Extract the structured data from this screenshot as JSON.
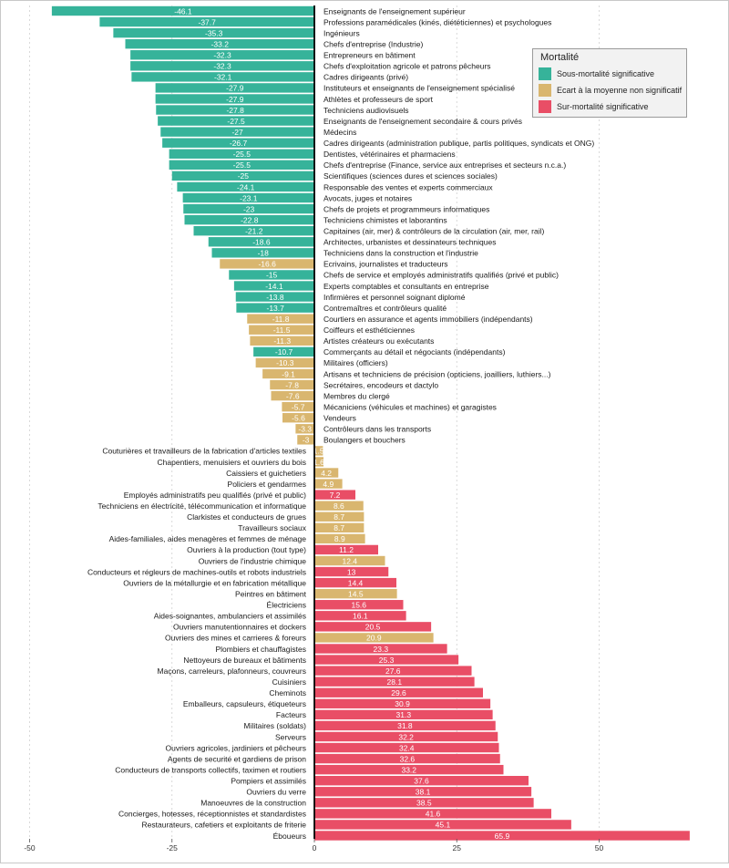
{
  "chart_data": {
    "type": "bar",
    "orientation": "horizontal",
    "xlim": [
      -52,
      68
    ],
    "x_ticks": [
      -50,
      -25,
      0,
      25,
      50
    ],
    "x_tick_labels": [
      "-50",
      "-25",
      "0",
      "25",
      "50"
    ],
    "grid": true,
    "legend": {
      "title": "Mortalité",
      "placement": "top-right",
      "entries": [
        {
          "key": "sous",
          "label": "Sous-mortalité significative",
          "color": "#36b39a"
        },
        {
          "key": "ecart",
          "label": "Ecart à la moyenne non significatif",
          "color": "#d9b66f"
        },
        {
          "key": "sur",
          "label": "Sur-mortalité significative",
          "color": "#e94e66"
        }
      ]
    },
    "bars": [
      {
        "label": "Enseignants de l'enseignement supérieur",
        "value": -46.1,
        "group": "sous"
      },
      {
        "label": "Professions paramédicales (kinés, diététiciennes) et psychologues",
        "value": -37.7,
        "group": "sous"
      },
      {
        "label": "Ingénieurs",
        "value": -35.3,
        "group": "sous"
      },
      {
        "label": "Chefs d'entreprise (Industrie)",
        "value": -33.2,
        "group": "sous"
      },
      {
        "label": "Entrepreneurs en bâtiment",
        "value": -32.3,
        "group": "sous"
      },
      {
        "label": "Chefs d'exploitation agricole et patrons pêcheurs",
        "value": -32.3,
        "group": "sous"
      },
      {
        "label": "Cadres dirigeants (privé)",
        "value": -32.1,
        "group": "sous"
      },
      {
        "label": "Instituteurs et enseignants de l'enseignement spécialisé",
        "value": -27.9,
        "group": "sous"
      },
      {
        "label": "Athlètes et professeurs de sport",
        "value": -27.9,
        "group": "sous"
      },
      {
        "label": "Techniciens audiovisuels",
        "value": -27.8,
        "group": "sous"
      },
      {
        "label": "Enseignants de l'enseignement secondaire & cours privés",
        "value": -27.5,
        "group": "sous"
      },
      {
        "label": "Médecins",
        "value": -27,
        "group": "sous"
      },
      {
        "label": "Cadres dirigeants (administration publique, partis politiques, syndicats et ONG)",
        "value": -26.7,
        "group": "sous"
      },
      {
        "label": "Dentistes, vétérinaires et pharmaciens",
        "value": -25.5,
        "group": "sous"
      },
      {
        "label": "Chefs d'entreprise (Finance, service aux entreprises et secteurs n.c.a.)",
        "value": -25.5,
        "group": "sous"
      },
      {
        "label": "Scientifiques (sciences dures et sciences sociales)",
        "value": -25,
        "group": "sous"
      },
      {
        "label": "Responsable des ventes et experts commerciaux",
        "value": -24.1,
        "group": "sous"
      },
      {
        "label": "Avocats, juges et notaires",
        "value": -23.1,
        "group": "sous"
      },
      {
        "label": "Chefs de projets et programmeurs informatiques",
        "value": -23,
        "group": "sous"
      },
      {
        "label": "Techniciens chimistes et laborantins",
        "value": -22.8,
        "group": "sous"
      },
      {
        "label": "Capitaines (air, mer) & contrôleurs de la circulation (air, mer, rail)",
        "value": -21.2,
        "group": "sous"
      },
      {
        "label": "Architectes, urbanistes et dessinateurs techniques",
        "value": -18.6,
        "group": "sous"
      },
      {
        "label": "Techniciens dans la construction et l'industrie",
        "value": -18,
        "group": "sous"
      },
      {
        "label": "Ecrivains, journalistes et traducteurs",
        "value": -16.6,
        "group": "ecart"
      },
      {
        "label": "Chefs de service et employés administratifs qualifiés (privé et public)",
        "value": -15,
        "group": "sous"
      },
      {
        "label": "Experts comptables et consultants en entreprise",
        "value": -14.1,
        "group": "sous"
      },
      {
        "label": "Infirmières et personnel soignant diplomé",
        "value": -13.8,
        "group": "sous"
      },
      {
        "label": "Contremaîtres et contrôleurs qualité",
        "value": -13.7,
        "group": "sous"
      },
      {
        "label": "Courtiers en assurance et agents immobiliers (indépendants)",
        "value": -11.8,
        "group": "ecart"
      },
      {
        "label": "Coiffeurs et esthéticiennes",
        "value": -11.5,
        "group": "ecart"
      },
      {
        "label": "Artistes créateurs ou exécutants",
        "value": -11.3,
        "group": "ecart"
      },
      {
        "label": "Commerçants au détail et négociants (indépendants)",
        "value": -10.7,
        "group": "sous"
      },
      {
        "label": "Militaires (officiers)",
        "value": -10.3,
        "group": "ecart"
      },
      {
        "label": "Artisans et techniciens de précision (opticiens, joailliers, luthiers...)",
        "value": -9.1,
        "group": "ecart"
      },
      {
        "label": "Secrétaires, encodeurs et dactylo",
        "value": -7.8,
        "group": "ecart"
      },
      {
        "label": "Membres du clergé",
        "value": -7.6,
        "group": "ecart"
      },
      {
        "label": "Mécaniciens (véhicules et machines) et garagistes",
        "value": -5.7,
        "group": "ecart"
      },
      {
        "label": "Vendeurs",
        "value": -5.6,
        "group": "ecart"
      },
      {
        "label": "Contrôleurs dans les transports",
        "value": -3.3,
        "group": "ecart"
      },
      {
        "label": "Boulangers et bouchers",
        "value": -3,
        "group": "ecart"
      },
      {
        "label": "Couturières et travailleurs de la fabrication d'articles textiles",
        "value": 1.5,
        "group": "ecart"
      },
      {
        "label": "Chapentiers, menuisiers et ouvriers du bois",
        "value": 1.6,
        "group": "ecart"
      },
      {
        "label": "Caissiers et guichetiers",
        "value": 4.2,
        "group": "ecart"
      },
      {
        "label": "Policiers et gendarmes",
        "value": 4.9,
        "group": "ecart"
      },
      {
        "label": "Employés administratifs peu qualifiés (privé et public)",
        "value": 7.2,
        "group": "sur"
      },
      {
        "label": "Techniciens en électricité, télécommunication et informatique",
        "value": 8.6,
        "group": "ecart"
      },
      {
        "label": "Clarkistes et conducteurs de grues",
        "value": 8.7,
        "group": "ecart"
      },
      {
        "label": "Travailleurs sociaux",
        "value": 8.7,
        "group": "ecart"
      },
      {
        "label": "Aides-familiales, aides menagères et femmes de ménage",
        "value": 8.9,
        "group": "ecart"
      },
      {
        "label": "Ouvriers à la production (tout type)",
        "value": 11.2,
        "group": "sur"
      },
      {
        "label": "Ouvriers de l'industrie chimique",
        "value": 12.4,
        "group": "ecart"
      },
      {
        "label": "Conducteurs et régleurs de machines-outils et robots industriels",
        "value": 13,
        "group": "sur"
      },
      {
        "label": "Ouvriers de la métallurgie et en fabrication métallique",
        "value": 14.4,
        "group": "sur"
      },
      {
        "label": "Peintres en bâtiment",
        "value": 14.5,
        "group": "ecart"
      },
      {
        "label": "Électriciens",
        "value": 15.6,
        "group": "sur"
      },
      {
        "label": "Aides-soignantes, ambulanciers et assimilés",
        "value": 16.1,
        "group": "sur"
      },
      {
        "label": "Ouvriers manutentionnaires et dockers",
        "value": 20.5,
        "group": "sur"
      },
      {
        "label": "Ouvriers des mines et carrieres & foreurs",
        "value": 20.9,
        "group": "ecart"
      },
      {
        "label": "Plombiers et chauffagistes",
        "value": 23.3,
        "group": "sur"
      },
      {
        "label": "Nettoyeurs de bureaux et bâtiments",
        "value": 25.3,
        "group": "sur"
      },
      {
        "label": "Maçons, carreleurs, plafonneurs, couvreurs",
        "value": 27.6,
        "group": "sur"
      },
      {
        "label": "Cuisiniers",
        "value": 28.1,
        "group": "sur"
      },
      {
        "label": "Cheminots",
        "value": 29.6,
        "group": "sur"
      },
      {
        "label": "Emballeurs, capsuleurs, étiqueteurs",
        "value": 30.9,
        "group": "sur"
      },
      {
        "label": "Facteurs",
        "value": 31.3,
        "group": "sur"
      },
      {
        "label": "Militaires (soldats)",
        "value": 31.8,
        "group": "sur"
      },
      {
        "label": "Serveurs",
        "value": 32.2,
        "group": "sur"
      },
      {
        "label": "Ouvriers agricoles, jardiniers et pêcheurs",
        "value": 32.4,
        "group": "sur"
      },
      {
        "label": "Agents de securité et gardiens de prison",
        "value": 32.6,
        "group": "sur"
      },
      {
        "label": "Conducteurs de transports collectifs, taximen et routiers",
        "value": 33.2,
        "group": "sur"
      },
      {
        "label": "Pompiers et assimilés",
        "value": 37.6,
        "group": "sur"
      },
      {
        "label": "Ouvriers du verre",
        "value": 38.1,
        "group": "sur"
      },
      {
        "label": "Manoeuvres de la construction",
        "value": 38.5,
        "group": "sur"
      },
      {
        "label": "Concierges, hotesses, réceptionnistes et standardistes",
        "value": 41.6,
        "group": "sur"
      },
      {
        "label": "Restaurateurs, cafetiers et exploitants de friterie",
        "value": 45.1,
        "group": "sur"
      },
      {
        "label": "Éboueurs",
        "value": 65.9,
        "group": "sur"
      }
    ]
  }
}
